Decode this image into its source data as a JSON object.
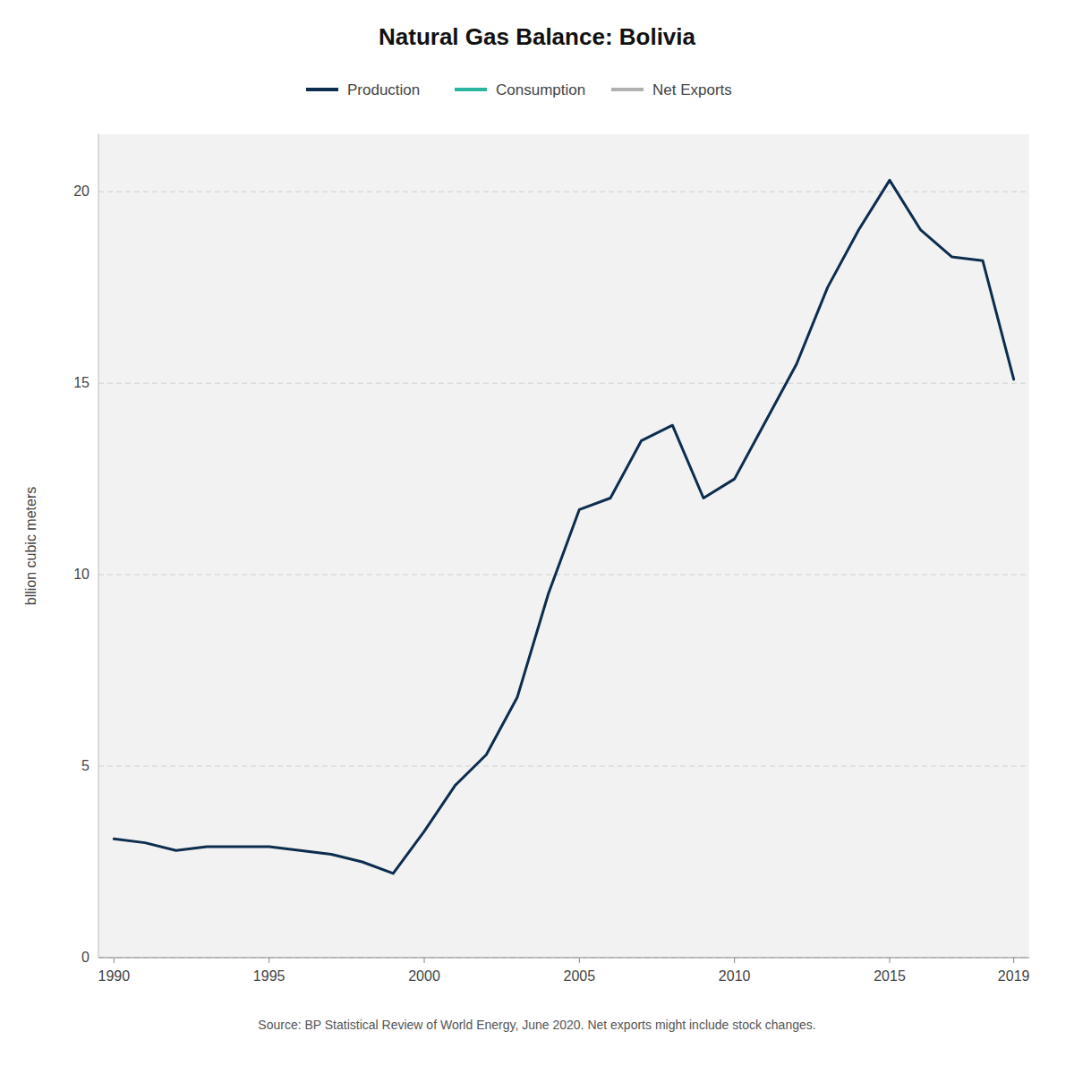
{
  "chart_data": {
    "type": "line",
    "title": "Natural Gas Balance: Bolivia",
    "y_label": "bllion cubic meters",
    "source": "Source: BP Statistical Review of World Energy, June 2020. Net exports might include stock changes.",
    "x": [
      1990,
      1991,
      1992,
      1993,
      1994,
      1995,
      1996,
      1997,
      1998,
      1999,
      2000,
      2001,
      2002,
      2003,
      2004,
      2005,
      2006,
      2007,
      2008,
      2009,
      2010,
      2011,
      2012,
      2013,
      2014,
      2015,
      2016,
      2017,
      2018,
      2019
    ],
    "series": [
      {
        "name": "Production",
        "color": "#0d2d4e",
        "values": [
          3.1,
          3.0,
          2.8,
          2.9,
          2.9,
          2.9,
          2.8,
          2.7,
          2.5,
          2.2,
          3.3,
          4.5,
          5.3,
          6.8,
          9.5,
          11.7,
          12.0,
          13.5,
          13.9,
          12.0,
          12.5,
          14.0,
          15.5,
          17.5,
          19.0,
          20.3,
          19.0,
          18.3,
          18.2,
          15.1
        ]
      },
      {
        "name": "Consumption",
        "color": "#2ab5a0",
        "values": [
          null,
          null,
          null,
          null,
          null,
          null,
          null,
          null,
          null,
          null,
          null,
          null,
          null,
          null,
          null,
          null,
          null,
          null,
          null,
          null,
          null,
          null,
          null,
          null,
          null,
          null,
          null,
          null,
          null,
          null
        ]
      },
      {
        "name": "Net Exports",
        "color": "#b0b0b0",
        "values": [
          null,
          null,
          null,
          null,
          null,
          null,
          null,
          null,
          null,
          null,
          null,
          null,
          null,
          null,
          null,
          null,
          null,
          null,
          null,
          null,
          null,
          null,
          null,
          null,
          null,
          null,
          null,
          null,
          null,
          null
        ]
      }
    ],
    "xlim": [
      1989.5,
      2019.5
    ],
    "ylim": [
      0,
      21.5
    ],
    "xticks": [
      1990,
      1995,
      2000,
      2005,
      2010,
      2015,
      2019
    ],
    "yticks": [
      0,
      5,
      10,
      15,
      20
    ],
    "grid": true,
    "legend": "top"
  }
}
